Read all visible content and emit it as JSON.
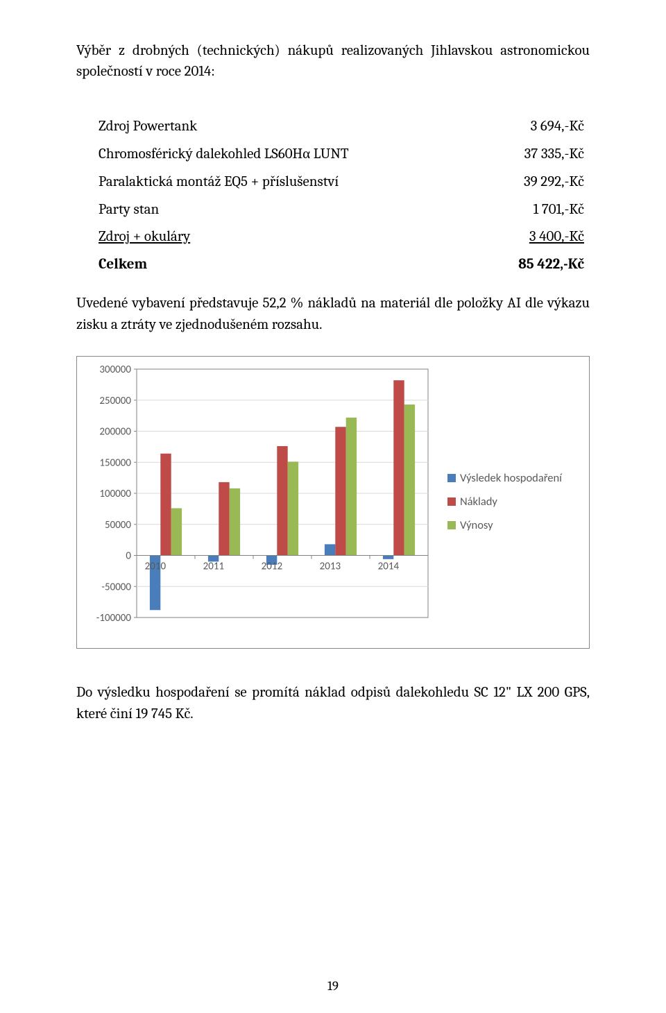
{
  "heading": "Výběr z drobných (technických) nákupů realizovaných Jihlavskou astronomickou společností v roce 2014:",
  "items": [
    {
      "label": "Zdroj Powertank",
      "value": "3 694,-Kč",
      "underline": false
    },
    {
      "label": "Chromosférický dalekohled LS60Hα LUNT",
      "value": "37 335,-Kč",
      "underline": false
    },
    {
      "label": "Paralaktická montáž EQ5 + příslušenství",
      "value": "39 292,-Kč",
      "underline": false
    },
    {
      "label": "Party stan",
      "value": "1 701,-Kč",
      "underline": false
    },
    {
      "label": "Zdroj + okuláry",
      "value": "3 400,-Kč",
      "underline": true
    }
  ],
  "total": {
    "label": "Celkem",
    "value": "85 422,-Kč"
  },
  "paragraph": "Uvedené vybavení představuje 52,2 % nákladů na materiál dle položky AI dle výkazu zisku a ztráty ve zjednodušeném rozsahu.",
  "chart": {
    "type": "bar",
    "categories": [
      "2010",
      "2011",
      "2012",
      "2013",
      "2014"
    ],
    "series": [
      {
        "name": "Výsledek hospodaření",
        "color": "#4a7ebb",
        "values": [
          -88000,
          -10000,
          -15000,
          18000,
          -6000
        ]
      },
      {
        "name": "Náklady",
        "color": "#be4b48",
        "values": [
          164000,
          118000,
          176000,
          207000,
          282000
        ]
      },
      {
        "name": "Výnosy",
        "color": "#98b954",
        "values": [
          76000,
          108000,
          151000,
          222000,
          243000
        ]
      }
    ],
    "ylim": [
      -100000,
      300000
    ],
    "ytick_step": 50000,
    "yticks": [
      "-100000",
      "-50000",
      "0",
      "50000",
      "100000",
      "150000",
      "200000",
      "250000",
      "300000"
    ],
    "grid_color": "#d9d9d9",
    "axis_color": "#828282",
    "axis_text_color": "#595959",
    "background_color": "#ffffff",
    "label_fontsize": 15,
    "legend_fontsize": 16.5,
    "bar_gap_inner": 0,
    "bar_group_width": 0.55
  },
  "footer": "Do výsledku hospodaření se promítá náklad odpisů dalekohledu SC 12\" LX 200 GPS, které činí 19 745 Kč.",
  "page_number": "19"
}
